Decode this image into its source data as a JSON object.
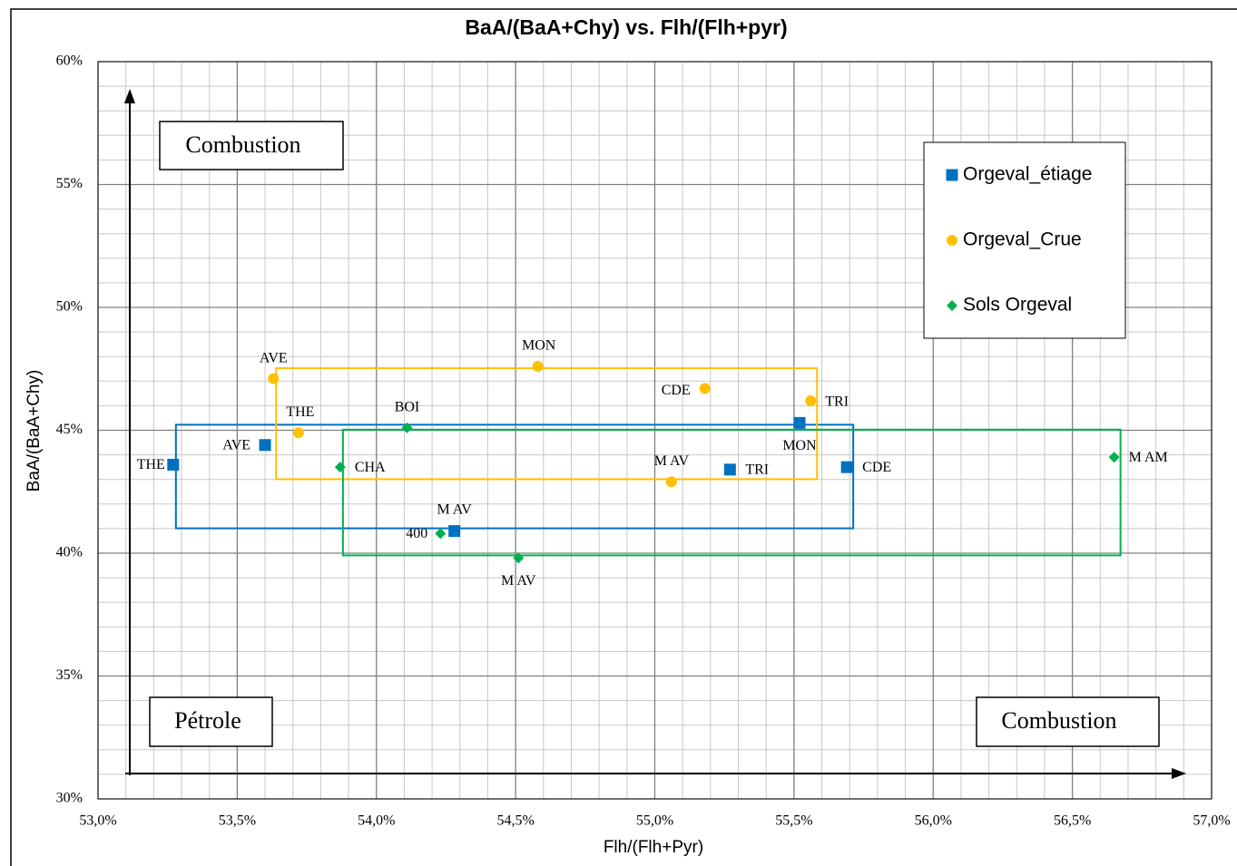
{
  "chart_data": {
    "type": "scatter",
    "title": "BaA/(BaA+Chy) vs. Flh/(Flh+pyr)",
    "x_label": "Flh/(Flh+Pyr)",
    "y_label": "BaA/(BaA+Chy)",
    "xlim": [
      53.0,
      57.0
    ],
    "ylim": [
      30,
      60
    ],
    "xticks": [
      {
        "value": 53.0,
        "label": "53,0%"
      },
      {
        "value": 53.5,
        "label": "53,5%"
      },
      {
        "value": 54.0,
        "label": "54,0%"
      },
      {
        "value": 54.5,
        "label": "54,5%"
      },
      {
        "value": 55.0,
        "label": "55,0%"
      },
      {
        "value": 55.5,
        "label": "55,5%"
      },
      {
        "value": 56.0,
        "label": "56,0%"
      },
      {
        "value": 56.5,
        "label": "56,5%"
      },
      {
        "value": 57.0,
        "label": "57,0%"
      }
    ],
    "yticks": [
      {
        "value": 30,
        "label": "30%"
      },
      {
        "value": 35,
        "label": "35%"
      },
      {
        "value": 40,
        "label": "40%"
      },
      {
        "value": 45,
        "label": "45%"
      },
      {
        "value": 50,
        "label": "50%"
      },
      {
        "value": 55,
        "label": "55%"
      },
      {
        "value": 60,
        "label": "60%"
      }
    ],
    "minor_xticks": [
      53.1,
      53.2,
      53.3,
      53.4,
      53.6,
      53.7,
      53.8,
      53.9,
      54.1,
      54.2,
      54.3,
      54.4,
      54.6,
      54.7,
      54.8,
      54.9,
      55.1,
      55.2,
      55.3,
      55.4,
      55.6,
      55.7,
      55.8,
      55.9,
      56.1,
      56.2,
      56.3,
      56.4,
      56.6,
      56.7,
      56.8,
      56.9
    ],
    "minor_yticks": [
      31,
      32,
      33,
      34,
      36,
      37,
      38,
      39,
      41,
      42,
      43,
      44,
      46,
      47,
      48,
      49,
      51,
      52,
      53,
      54,
      56,
      57,
      58,
      59
    ],
    "grid": true,
    "legend": "top-right",
    "series": [
      {
        "name": "Orgeval_étiage",
        "color": "#0070c0",
        "marker": "square",
        "labels": [
          "THE",
          "AVE",
          "MON",
          "TRI",
          "CDE",
          "M AV"
        ],
        "x": [
          53.27,
          53.6,
          55.52,
          55.27,
          55.69,
          54.28
        ],
        "values": [
          43.6,
          44.4,
          45.3,
          43.4,
          43.5,
          40.9
        ]
      },
      {
        "name": "Orgeval_Crue",
        "color": "#ffc000",
        "marker": "circle",
        "labels": [
          "AVE",
          "THE",
          "MON",
          "CDE",
          "TRI",
          "M AV"
        ],
        "x": [
          53.63,
          53.72,
          54.58,
          55.18,
          55.56,
          55.06
        ],
        "values": [
          47.1,
          44.9,
          47.6,
          46.7,
          46.2,
          42.9
        ]
      },
      {
        "name": "Sols Orgeval",
        "color": "#00b050",
        "marker": "diamond",
        "labels": [
          "CHA",
          "BOI",
          "400",
          "M AV",
          "M AM"
        ],
        "x": [
          53.87,
          54.11,
          54.23,
          54.51,
          56.65
        ],
        "values": [
          43.5,
          45.1,
          40.8,
          39.8,
          43.9
        ]
      }
    ],
    "annotations": [
      "Combustion",
      "Pétrole",
      "Combustion"
    ]
  }
}
